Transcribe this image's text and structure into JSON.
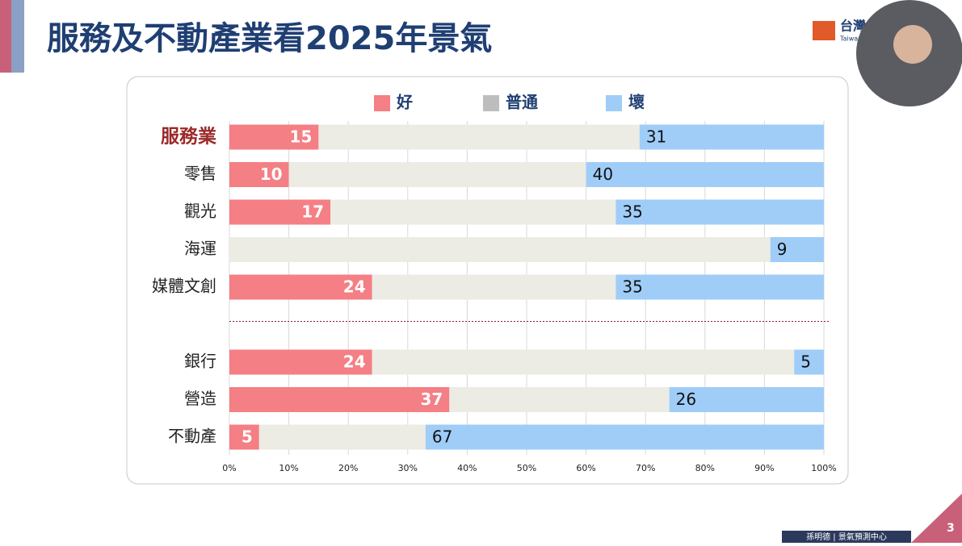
{
  "slide": {
    "title": "服務及不動產業看2025年景氣",
    "logo": "台灣",
    "logo_sub": "Taiwan",
    "footer": "孫明德 | 景氣預測中心",
    "page_number": "3"
  },
  "chart_data": {
    "type": "stacked_barh",
    "categories": [
      "服務業",
      "零售",
      "觀光",
      "海運",
      "媒體文創",
      null,
      "銀行",
      "營造",
      "不動產"
    ],
    "series": [
      {
        "name": "好",
        "color": "#f47f84",
        "data_labels": true,
        "values": [
          15,
          10,
          17,
          0,
          24,
          null,
          24,
          37,
          5
        ]
      },
      {
        "name": "普通",
        "color": "#ecebe4",
        "legend_color": "#bdbdbd",
        "data_labels": false,
        "values": [
          54,
          50,
          48,
          91,
          41,
          null,
          71,
          37,
          28
        ]
      },
      {
        "name": "壞",
        "color": "#9fcdf8",
        "data_labels": true,
        "values": [
          31,
          40,
          35,
          9,
          35,
          null,
          5,
          26,
          67
        ]
      }
    ],
    "xlim": [
      0,
      100
    ],
    "xticks": [
      {
        "value": 0,
        "label": "0%"
      },
      {
        "value": 10,
        "label": "10%"
      },
      {
        "value": 20,
        "label": "20%"
      },
      {
        "value": 30,
        "label": "30%"
      },
      {
        "value": 40,
        "label": "40%"
      },
      {
        "value": 50,
        "label": "50%"
      },
      {
        "value": 60,
        "label": "60%"
      },
      {
        "value": 70,
        "label": "70%"
      },
      {
        "value": 80,
        "label": "80%"
      },
      {
        "value": 90,
        "label": "90%"
      },
      {
        "value": 100,
        "label": "100%"
      }
    ],
    "grid": true,
    "legend": "top"
  }
}
